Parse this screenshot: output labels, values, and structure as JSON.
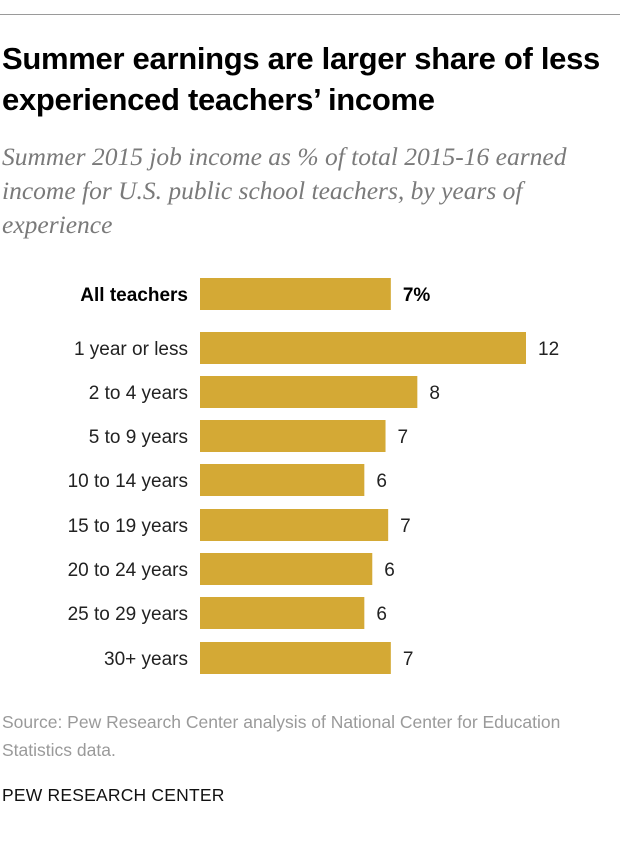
{
  "header": {
    "title": "Summer earnings are larger share of less experienced teachers’ income",
    "subtitle": "Summer 2015 job income as % of total 2015-16 earned income for U.S. public school teachers, by years of experience"
  },
  "chart_data": {
    "type": "bar",
    "orientation": "horizontal",
    "title": "Summer earnings are larger share of less experienced teachers’ income",
    "subtitle": "Summer 2015 job income as % of total 2015-16 earned income for U.S. public school teachers, by years of experience",
    "categories": [
      "All teachers",
      "1 year or less",
      "2 to 4 years",
      "5 to 9 years",
      "10 to 14 years",
      "15 to 19 years",
      "20 to 24 years",
      "25 to 29 years",
      "30+ years"
    ],
    "values": [
      7.2,
      12.3,
      8.2,
      7.0,
      6.2,
      7.1,
      6.5,
      6.2,
      7.2
    ],
    "value_labels": [
      "7%",
      "12",
      "8",
      "7",
      "6",
      "7",
      "6",
      "6",
      "7"
    ],
    "bar_color": "#d4a935",
    "xlim": [
      0,
      12.3
    ],
    "xlabel": "",
    "ylabel": "",
    "grid": false,
    "legend": "none"
  },
  "footer": {
    "source": "Source: Pew Research Center analysis of National Center for Education Statistics data.",
    "brand": "PEW RESEARCH CENTER"
  }
}
